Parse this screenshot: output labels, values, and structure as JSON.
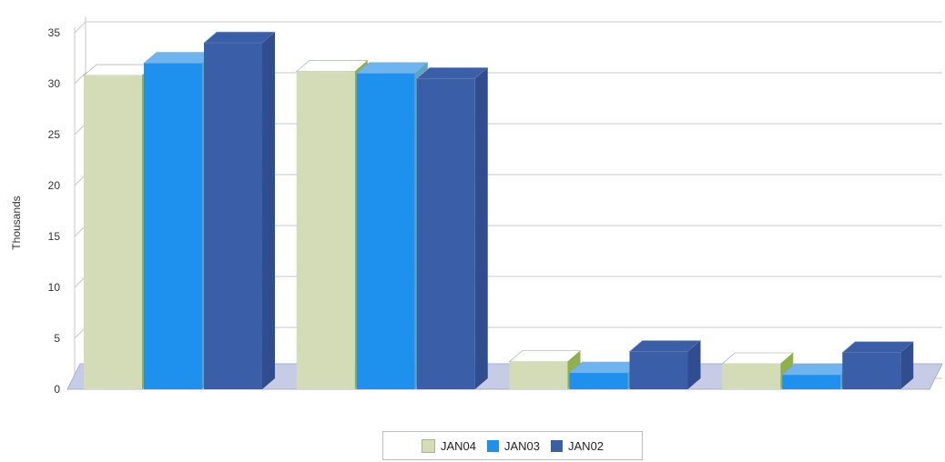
{
  "chart_data": {
    "type": "bar",
    "ylabel": "Thousands",
    "ylim": [
      0,
      35
    ],
    "yticks": [
      "0",
      "5",
      "10",
      "15",
      "20",
      "25",
      "30",
      "35"
    ],
    "categories": [
      "",
      "",
      "",
      ""
    ],
    "series": [
      {
        "name": "JAN04",
        "values": [
          30.8,
          31.2,
          2.7,
          2.5
        ],
        "color": "#d3dcb7",
        "top": "#ffffff",
        "side": "#8fb04a"
      },
      {
        "name": "JAN03",
        "values": [
          32.0,
          31.0,
          1.6,
          1.4
        ],
        "color": "#1e90ee",
        "top": "#70b4ef",
        "side": "#59a6c4"
      },
      {
        "name": "JAN02",
        "values": [
          34.0,
          30.5,
          3.7,
          3.6
        ],
        "color": "#3b5ea8",
        "top": "#3b5ea8",
        "side": "#2f4d8f"
      }
    ],
    "grid": true,
    "legend": "bottom"
  }
}
